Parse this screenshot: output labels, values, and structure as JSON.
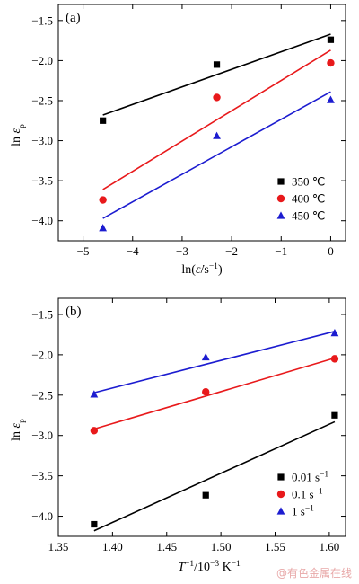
{
  "chart_data": [
    {
      "type": "scatter",
      "panel_label": "(a)",
      "xlabel": "ln(ε̇/s⁻¹)",
      "ylabel": "ln εp",
      "xlim": [
        -5.5,
        0.3
      ],
      "ylim": [
        -4.25,
        -1.3
      ],
      "xticks": [
        -5,
        -4,
        -3,
        -2,
        -1,
        0
      ],
      "yticks": [
        -4.0,
        -3.5,
        -3.0,
        -2.5,
        -2.0,
        -1.5
      ],
      "xticklabels": [
        "−5",
        "−4",
        "−3",
        "−2",
        "−1",
        "0"
      ],
      "yticklabels": [
        "−4.0",
        "−3.5",
        "−3.0",
        "−2.5",
        "−2.0",
        "−1.5"
      ],
      "legend_position": "bottom-right",
      "series": [
        {
          "name": "350 ℃",
          "marker": "square",
          "color": "#000000",
          "x": [
            -4.6,
            -2.3,
            0
          ],
          "y": [
            -2.75,
            -2.05,
            -1.74
          ],
          "fit": {
            "x": [
              -4.6,
              0
            ],
            "y": [
              -2.68,
              -1.67
            ]
          }
        },
        {
          "name": "400 ℃",
          "marker": "circle",
          "color": "#e8191b",
          "x": [
            -4.6,
            -2.3,
            0
          ],
          "y": [
            -3.74,
            -2.46,
            -2.03
          ],
          "fit": {
            "x": [
              -4.6,
              0
            ],
            "y": [
              -3.61,
              -1.87
            ]
          }
        },
        {
          "name": "450 ℃",
          "marker": "triangle",
          "color": "#1c1cd0",
          "x": [
            -4.6,
            -2.3,
            0
          ],
          "y": [
            -4.09,
            -2.94,
            -2.49
          ],
          "fit": {
            "x": [
              -4.6,
              0
            ],
            "y": [
              -3.97,
              -2.39
            ]
          }
        }
      ]
    },
    {
      "type": "scatter",
      "panel_label": "(b)",
      "xlabel_parts": [
        "T",
        "−1",
        "/10",
        "−3",
        " K",
        "−1"
      ],
      "ylabel": "ln εp",
      "xlim": [
        1.35,
        1.615
      ],
      "ylim": [
        -4.25,
        -1.3
      ],
      "xticks": [
        1.35,
        1.4,
        1.45,
        1.5,
        1.55,
        1.6
      ],
      "yticks": [
        -4.0,
        -3.5,
        -3.0,
        -2.5,
        -2.0,
        -1.5
      ],
      "xticklabels": [
        "1.35",
        "1.40",
        "1.45",
        "1.50",
        "1.55",
        "1.60"
      ],
      "yticklabels": [
        "−4.0",
        "−3.5",
        "−3.0",
        "−2.5",
        "−2.0",
        "−1.5"
      ],
      "legend_position": "bottom-right",
      "series": [
        {
          "name_parts": [
            "0.01 s",
            "−1"
          ],
          "marker": "square",
          "color": "#000000",
          "x": [
            1.383,
            1.486,
            1.605
          ],
          "y": [
            -4.1,
            -3.74,
            -2.75
          ],
          "fit": {
            "x": [
              1.383,
              1.605
            ],
            "y": [
              -4.18,
              -2.83
            ]
          }
        },
        {
          "name_parts": [
            "0.1 s",
            "−1"
          ],
          "marker": "circle",
          "color": "#e8191b",
          "x": [
            1.383,
            1.486,
            1.605
          ],
          "y": [
            -2.94,
            -2.46,
            -2.05
          ],
          "fit": {
            "x": [
              1.383,
              1.605
            ],
            "y": [
              -2.92,
              -2.04
            ]
          }
        },
        {
          "name_parts": [
            "1 s",
            "−1"
          ],
          "marker": "triangle",
          "color": "#1c1cd0",
          "x": [
            1.383,
            1.486,
            1.605
          ],
          "y": [
            -2.49,
            -2.03,
            -1.73
          ],
          "fit": {
            "x": [
              1.383,
              1.605
            ],
            "y": [
              -2.47,
              -1.71
            ]
          }
        }
      ]
    }
  ],
  "watermark": "@有色金属在线"
}
